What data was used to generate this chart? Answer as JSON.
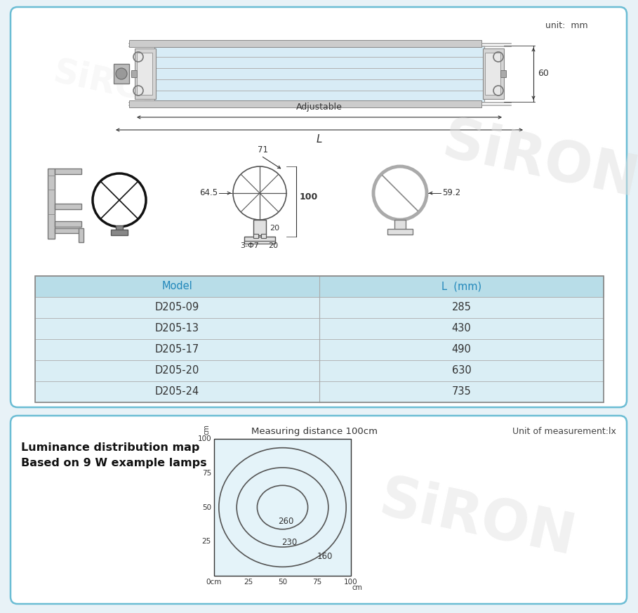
{
  "bg_color": "#e8f2f7",
  "panel_bg": "#ffffff",
  "border_color": "#6bbdd4",
  "unit_text": "unit:  mm",
  "table_header_bg": "#b8dde8",
  "table_row_bg": "#daeef5",
  "table_border_color": "#aaaaaa",
  "table_models": [
    "D205-09",
    "D205-13",
    "D205-17",
    "D205-20",
    "D205-24"
  ],
  "table_values": [
    "285",
    "430",
    "490",
    "630",
    "735"
  ],
  "table_header_model": "Model",
  "table_header_L": "L  (mm)",
  "table_header_color": "#2288bb",
  "lum_title1": "Luminance distribution map",
  "lum_title2": "Based on 9 W example lamps",
  "lum_meas": "Measuring distance 100cm",
  "lum_unit": "Unit of measurement:lx",
  "lum_plot_bg": "#e4f3f9",
  "lum_contour_color": "#555555",
  "lum_labels": [
    "260",
    "230",
    "160"
  ],
  "dim_60": "60",
  "dim_adjustable": "Adjustable",
  "dim_L": "L",
  "dim_71": "71",
  "dim_64_5": "64.5",
  "dim_100": "100",
  "dim_20a": "20",
  "dim_3phi7": "3-Φ7",
  "dim_20b": "20",
  "dim_59_2": "59.2",
  "watermark": "SiRON"
}
